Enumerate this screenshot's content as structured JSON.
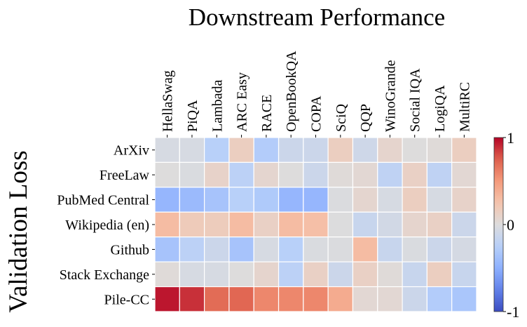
{
  "chart_data": {
    "type": "heatmap",
    "title": "Downstream Performance",
    "ylabel": "Validation Loss",
    "xlabel": "",
    "columns": [
      "HellaSwag",
      "PiQA",
      "Lambada",
      "ARC Easy",
      "RACE",
      "OpenBookQA",
      "COPA",
      "SciQ",
      "QQP",
      "WinoGrande",
      "Social IQA",
      "LogiQA",
      "MultiRC"
    ],
    "rows": [
      "ArXiv",
      "FreeLaw",
      "PubMed Central",
      "Wikipedia (en)",
      "Github",
      "Stack Exchange",
      "Pile-CC"
    ],
    "values": [
      [
        -0.05,
        -0.05,
        -0.25,
        0.15,
        -0.28,
        -0.12,
        -0.12,
        0.15,
        -0.1,
        0.08,
        0.0,
        0.02,
        0.15
      ],
      [
        0.0,
        -0.03,
        0.1,
        -0.22,
        0.07,
        0.0,
        -0.12,
        0.02,
        0.05,
        -0.2,
        0.12,
        -0.2,
        0.05
      ],
      [
        -0.45,
        -0.42,
        -0.35,
        -0.25,
        -0.3,
        -0.45,
        -0.45,
        -0.02,
        0.07,
        -0.05,
        0.15,
        -0.05,
        0.1
      ],
      [
        0.3,
        0.18,
        0.17,
        0.3,
        0.12,
        0.3,
        0.28,
        -0.01,
        -0.15,
        -0.08,
        0.08,
        0.12,
        -0.12
      ],
      [
        -0.35,
        -0.22,
        -0.12,
        -0.35,
        -0.05,
        -0.25,
        -0.03,
        -0.02,
        0.3,
        -0.15,
        -0.03,
        -0.12,
        -0.06
      ],
      [
        0.02,
        -0.05,
        -0.05,
        0.0,
        0.08,
        -0.22,
        0.12,
        -0.12,
        0.12,
        0.02,
        -0.15,
        0.15,
        -0.15
      ],
      [
        0.95,
        0.88,
        0.7,
        0.72,
        0.58,
        0.58,
        0.58,
        0.4,
        0.05,
        0.05,
        -0.12,
        -0.28,
        -0.33
      ]
    ],
    "colormap": "coolwarm",
    "vmin": -1,
    "vmax": 1,
    "colorbar_ticks": [
      "1",
      "0",
      "-1"
    ],
    "colorbar_placement": "right",
    "grid": false
  }
}
